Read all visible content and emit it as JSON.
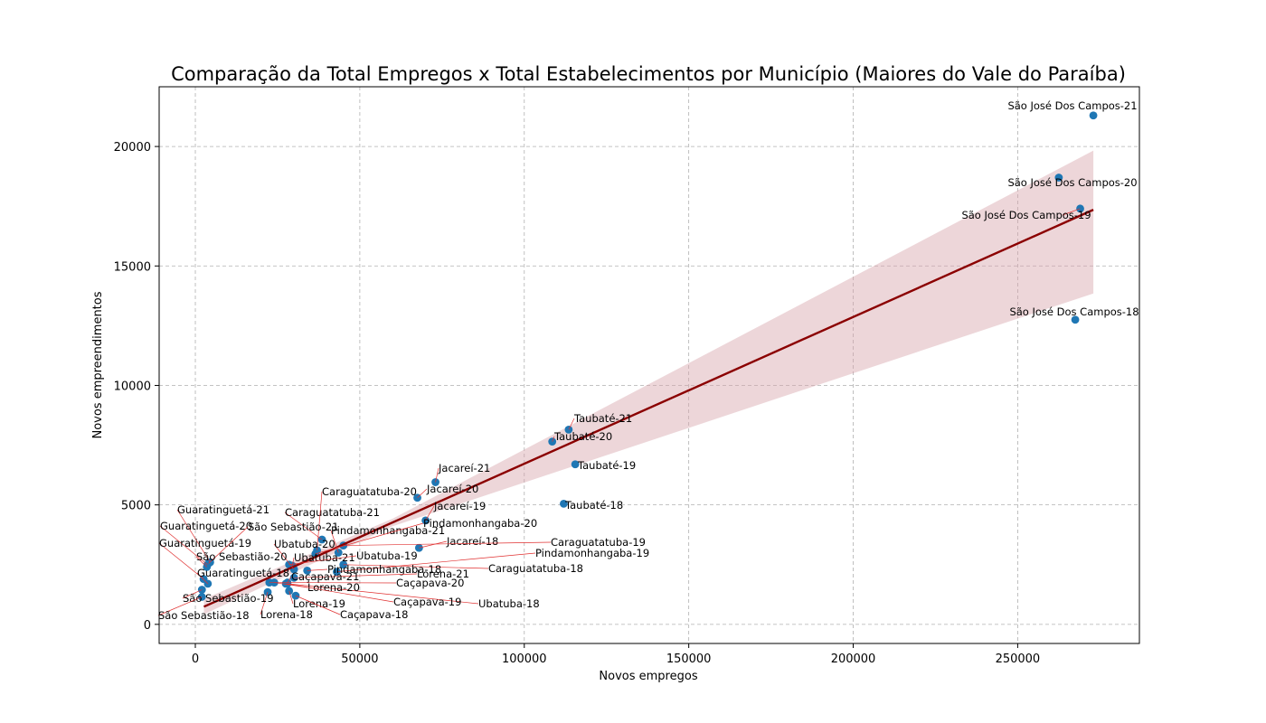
{
  "chart_data": {
    "type": "scatter",
    "title": "Comparação da Total Empregos x Total Estabelecimentos por Município (Maiores do Vale do Paraíba)",
    "xlabel": "Novos empregos",
    "ylabel": "Novos empreendimentos",
    "xlim": [
      -11000,
      287000
    ],
    "ylim": [
      -800,
      22500
    ],
    "xticks": [
      0,
      50000,
      100000,
      150000,
      200000,
      250000
    ],
    "yticks": [
      0,
      5000,
      10000,
      15000,
      20000
    ],
    "xtick_labels": [
      "0",
      "50000",
      "100000",
      "150000",
      "200000",
      "250000"
    ],
    "ytick_labels": [
      "0",
      "5000",
      "10000",
      "15000",
      "20000"
    ],
    "grid": true,
    "colors": {
      "points": "#1f77b4",
      "regression": "#8b0000",
      "band": "#d8a5aa",
      "leader": "#e03030"
    },
    "regression": {
      "x_range": [
        2600,
        273000
      ],
      "line_y": [
        739,
        17350
      ],
      "ci_low_end": [
        420,
        13850
      ],
      "ci_high_end": [
        1060,
        19830
      ]
    },
    "points": [
      {
        "label": "São José Dos Campos-21",
        "x": 273000,
        "y": 21300
      },
      {
        "label": "São José Dos Campos-20",
        "x": 262500,
        "y": 18700
      },
      {
        "label": "São José Dos Campos-19",
        "x": 269000,
        "y": 17400
      },
      {
        "label": "São José Dos Campos-18",
        "x": 267500,
        "y": 12750
      },
      {
        "label": "Taubaté-21",
        "x": 113500,
        "y": 8150
      },
      {
        "label": "Taubaté-20",
        "x": 108500,
        "y": 7650
      },
      {
        "label": "Taubaté-19",
        "x": 115500,
        "y": 6700
      },
      {
        "label": "Taubaté-18",
        "x": 112000,
        "y": 5050
      },
      {
        "label": "Jacareí-21",
        "x": 73000,
        "y": 5950
      },
      {
        "label": "Jacareí-20",
        "x": 67500,
        "y": 5300
      },
      {
        "label": "Jacareí-19",
        "x": 70000,
        "y": 4350
      },
      {
        "label": "Jacareí-18",
        "x": 68000,
        "y": 3200
      },
      {
        "label": "Caraguatatuba-21",
        "x": 38500,
        "y": 3550
      },
      {
        "label": "Caraguatatuba-20",
        "x": 37000,
        "y": 3100
      },
      {
        "label": "Caraguatatuba-19",
        "x": 45000,
        "y": 3300
      },
      {
        "label": "Caraguatatuba-18",
        "x": 45000,
        "y": 2500
      },
      {
        "label": "Pindamonhangaba-21",
        "x": 43500,
        "y": 3000
      },
      {
        "label": "Pindamonhangaba-20",
        "x": 36500,
        "y": 2950
      },
      {
        "label": "Pindamonhangaba-19",
        "x": 43000,
        "y": 2200
      },
      {
        "label": "Pindamonhangaba-18",
        "x": 34000,
        "y": 2250
      },
      {
        "label": "Ubatuba-21",
        "x": 29500,
        "y": 2450
      },
      {
        "label": "Ubatuba-20",
        "x": 30000,
        "y": 2300
      },
      {
        "label": "Ubatuba-19",
        "x": 28500,
        "y": 2500
      },
      {
        "label": "Ubatuba-18",
        "x": 28000,
        "y": 1700
      },
      {
        "label": "Lorena-21",
        "x": 30000,
        "y": 1950
      },
      {
        "label": "Lorena-20",
        "x": 24000,
        "y": 1750
      },
      {
        "label": "Lorena-19",
        "x": 28500,
        "y": 1400
      },
      {
        "label": "Lorena-18",
        "x": 22000,
        "y": 1350
      },
      {
        "label": "Caçapava-21",
        "x": 28000,
        "y": 1750
      },
      {
        "label": "Caçapava-20",
        "x": 22500,
        "y": 1750
      },
      {
        "label": "Caçapava-19",
        "x": 27500,
        "y": 1700
      },
      {
        "label": "Caçapava-18",
        "x": 30500,
        "y": 1200
      },
      {
        "label": "Guaratinguetá-21",
        "x": 4500,
        "y": 2600
      },
      {
        "label": "Guaratinguetá-20",
        "x": 3700,
        "y": 2500
      },
      {
        "label": "Guaratinguetá-19",
        "x": 2500,
        "y": 1900
      },
      {
        "label": "Guaratinguetá-18",
        "x": 3800,
        "y": 1700
      },
      {
        "label": "São Sebastião-21",
        "x": 4000,
        "y": 2550
      },
      {
        "label": "São Sebastião-20",
        "x": 3500,
        "y": 2400
      },
      {
        "label": "São Sebastião-19",
        "x": 2000,
        "y": 1450
      },
      {
        "label": "São Sebastião-18",
        "x": 2000,
        "y": 1150
      }
    ]
  }
}
